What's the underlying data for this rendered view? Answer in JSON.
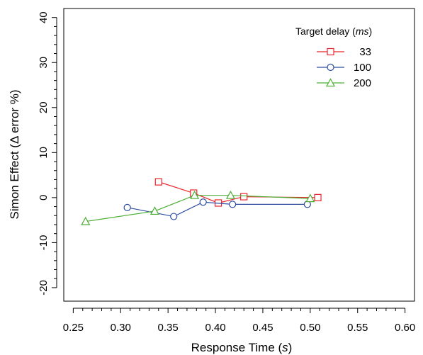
{
  "chart_data": {
    "type": "line",
    "xlabel": "Response Time (s)",
    "xlabel_main": "Response Time (",
    "xlabel_unit": "s",
    "xlabel_end": ")",
    "ylabel": "Simon Effect (Δ error %)",
    "xlim": [
      0.24,
      0.61
    ],
    "ylim": [
      -23,
      42
    ],
    "xticks": [
      0.25,
      0.3,
      0.35,
      0.4,
      0.45,
      0.5,
      0.55,
      0.6
    ],
    "xtick_labels": [
      "0.25",
      "0.30",
      "0.35",
      "0.40",
      "0.45",
      "0.50",
      "0.55",
      "0.60"
    ],
    "xminor_step": 0.01,
    "yticks": [
      -20,
      -10,
      0,
      10,
      20,
      30,
      40
    ],
    "ytick_labels": [
      "-20",
      "-10",
      "0",
      "10",
      "20",
      "30",
      "40"
    ],
    "yminor_step": 2,
    "grid": false,
    "legend": {
      "position": "top-right",
      "title_main": "Target delay (",
      "title_unit": "ms",
      "title_end": ")"
    },
    "series": [
      {
        "name": "33",
        "color": "#e8262b",
        "marker": "square",
        "x": [
          0.34,
          0.377,
          0.403,
          0.43,
          0.508
        ],
        "y": [
          3.5,
          1.0,
          -1.2,
          0.2,
          0.0
        ]
      },
      {
        "name": "100",
        "color": "#2e4da0",
        "marker": "circle",
        "x": [
          0.307,
          0.356,
          0.387,
          0.418,
          0.497
        ],
        "y": [
          -2.2,
          -4.2,
          -1.0,
          -1.5,
          -1.5
        ]
      },
      {
        "name": "200",
        "color": "#4caf35",
        "marker": "triangle",
        "x": [
          0.263,
          0.336,
          0.378,
          0.416,
          0.5
        ],
        "y": [
          -5.3,
          -3.0,
          0.5,
          0.5,
          -0.2
        ]
      }
    ]
  }
}
